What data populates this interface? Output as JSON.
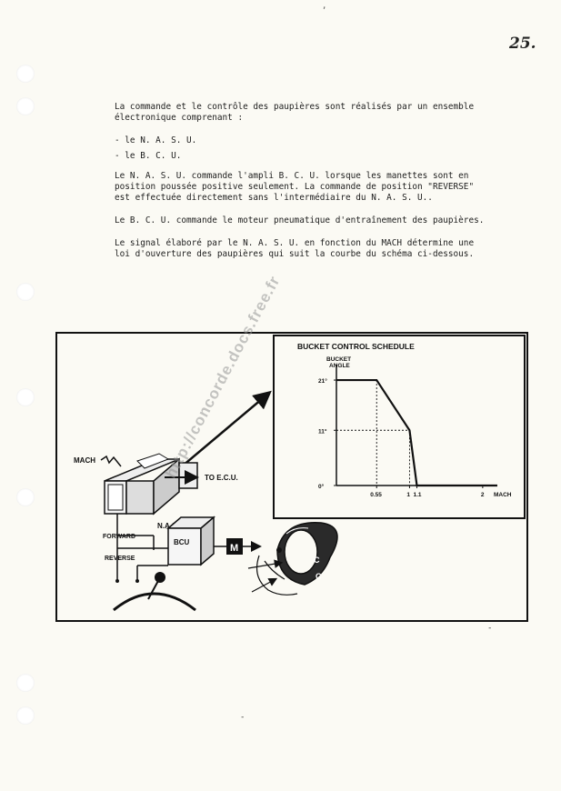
{
  "page": {
    "number": "25."
  },
  "text": {
    "intro": "La commande et le contrôle des paupières sont réalisés par un ensemble\nélectronique comprenant :",
    "item1": "- le N. A. S. U.",
    "item2": "- le B. C. U.",
    "para2": "Le N. A. S. U. commande l'ampli B. C. U. lorsque les manettes sont en\nposition poussée positive seulement. La commande de position \"REVERSE\"\nest effectuée directement sans l'intermédiaire du N. A. S. U..",
    "para3": "Le B. C. U. commande le moteur pneumatique d'entraînement des paupières.",
    "para4": "Le signal élaboré par le N. A. S. U. en fonction du MACH détermine une\nloi d'ouverture des paupières qui suit la courbe du schéma ci-dessous."
  },
  "figure": {
    "labels": {
      "mach_input": "MACH",
      "to_ecu": "TO E.C.U.",
      "nasu": "N.A.S.U.",
      "forward": "FORWARD",
      "reverse": "REVERSE",
      "bcu": "BCU",
      "motor": "M",
      "bucket_c_top": "C",
      "bucket_c_bottom": "C"
    }
  },
  "chart_data": {
    "type": "line",
    "title": "BUCKET CONTROL SCHEDULE",
    "ylabel_line1": "BUCKET",
    "ylabel_line2": "ANGLE",
    "xlabel": "MACH",
    "x_ticks": [
      "0.55",
      "1",
      "1.1",
      "2"
    ],
    "y_ticks": [
      "21°",
      "11°",
      "0°"
    ],
    "xlim": [
      0,
      2.3
    ],
    "ylim": [
      0,
      23
    ],
    "series": [
      {
        "x": [
          0,
          0.55,
          1,
          1.1,
          2.2
        ],
        "y": [
          21,
          21,
          11,
          0,
          0
        ]
      }
    ],
    "guides": [
      {
        "x": 0.55,
        "y": 21
      },
      {
        "x": 1,
        "y": 11
      },
      {
        "x": 1.1,
        "y": 0
      }
    ],
    "grid": false,
    "legend": "none"
  },
  "watermark": "http://concorde.docs.free.fr"
}
